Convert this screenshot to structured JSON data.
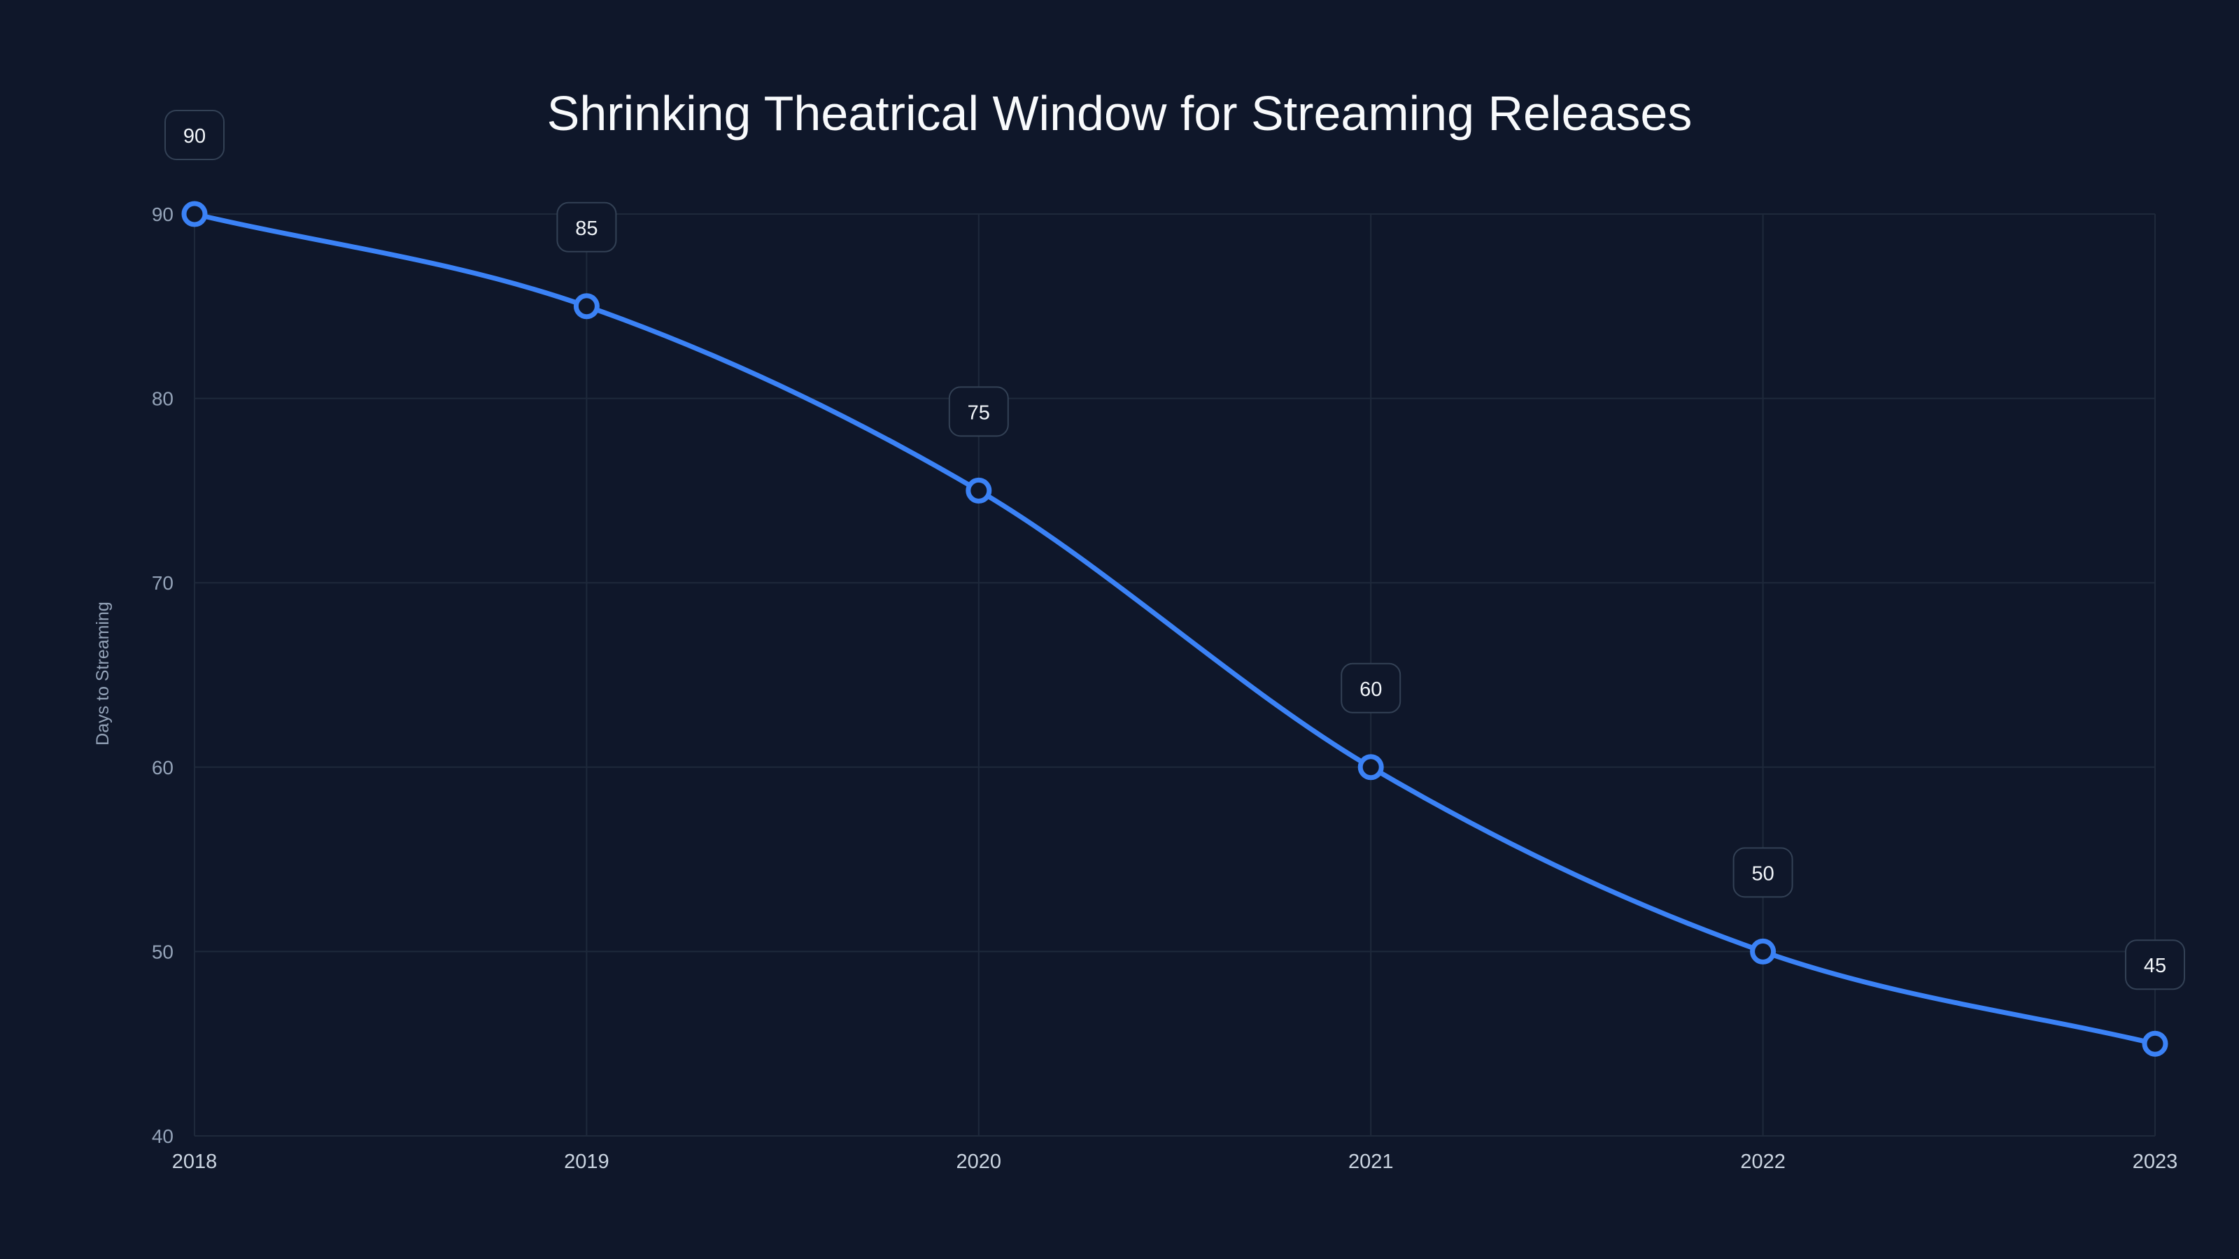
{
  "chart_data": {
    "type": "line",
    "title": "Shrinking Theatrical Window for Streaming Releases",
    "xlabel": "",
    "ylabel": "Days to Streaming",
    "categories": [
      "2018",
      "2019",
      "2020",
      "2021",
      "2022",
      "2023"
    ],
    "series": [
      {
        "name": "Days to Streaming",
        "values": [
          90,
          85,
          75,
          60,
          50,
          45
        ]
      }
    ],
    "ylim": [
      40,
      90
    ],
    "yticks": [
      40,
      50,
      60,
      70,
      80,
      90
    ],
    "grid": true,
    "data_labels": true,
    "colors": {
      "line": "#3b82f6",
      "background": "#0f172a",
      "grid": "#1e293b"
    }
  }
}
